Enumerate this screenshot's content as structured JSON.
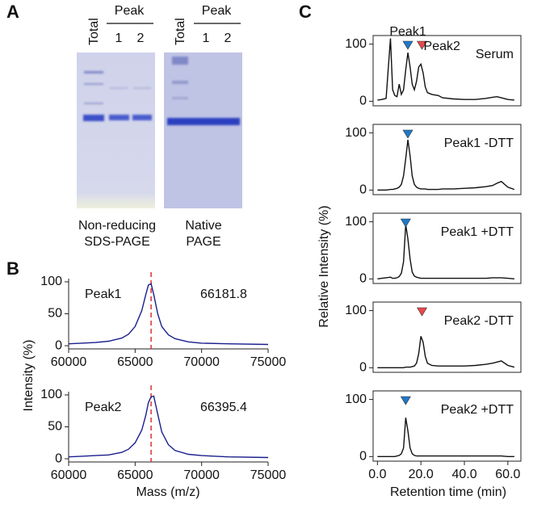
{
  "labels": {
    "a": "A",
    "b": "B",
    "c": "C"
  },
  "gels": [
    {
      "total": "Total",
      "peak": "Peak",
      "lane1": "1",
      "lane2": "2",
      "caption": [
        "Non-reducing",
        "SDS-PAGE"
      ]
    },
    {
      "total": "Total",
      "peak": "Peak",
      "lane1": "1",
      "lane2": "2",
      "caption": [
        "Native",
        "PAGE"
      ]
    }
  ],
  "axis_labels": {
    "b_y": "Intensity (%)",
    "b_x": "Mass (m/z)",
    "c_y": "Relative Intensity (%)",
    "c_x": "Retention time (min)"
  },
  "chart_data": [
    {
      "type": "line",
      "annotation": "66181.8",
      "ref_x": 66200,
      "x": [
        60000,
        61000,
        62000,
        63000,
        64000,
        64500,
        65000,
        65500,
        65800,
        66000,
        66200,
        66400,
        66700,
        67000,
        67500,
        68000,
        69000,
        70000,
        72000,
        75000
      ],
      "series": [
        {
          "name": "Peak1",
          "color": "#1a1f8c",
          "values": [
            3,
            4,
            5,
            7,
            12,
            18,
            30,
            55,
            80,
            95,
            97,
            80,
            50,
            30,
            17,
            11,
            6,
            4,
            3,
            2
          ]
        }
      ],
      "xlim": [
        60000,
        75000
      ],
      "xticks": [
        60000,
        65000,
        70000,
        75000
      ],
      "ylim": [
        -5,
        105
      ],
      "yticks": [
        0,
        50,
        100
      ]
    },
    {
      "type": "line",
      "annotation": "66395.4",
      "ref_x": 66200,
      "x": [
        60000,
        61000,
        62000,
        63000,
        64000,
        64500,
        65000,
        65500,
        65800,
        66000,
        66200,
        66400,
        66700,
        67000,
        67500,
        68000,
        69000,
        70000,
        72000,
        75000
      ],
      "series": [
        {
          "name": "Peak2",
          "color": "#1a1f8c",
          "values": [
            3,
            4,
            5,
            6,
            10,
            15,
            25,
            45,
            68,
            88,
            97,
            98,
            70,
            42,
            22,
            13,
            7,
            5,
            3,
            2
          ]
        }
      ],
      "xlim": [
        60000,
        75000
      ],
      "xticks": [
        60000,
        65000,
        70000,
        75000
      ],
      "ylim": [
        -5,
        105
      ],
      "yticks": [
        0,
        50,
        100
      ]
    },
    {
      "type": "line",
      "x": [
        0,
        2,
        4,
        6,
        7,
        8,
        9,
        10,
        11,
        12,
        13,
        14,
        15,
        16,
        17,
        18,
        19,
        20,
        21,
        22,
        23,
        25,
        28,
        30,
        35,
        40,
        45,
        50,
        53,
        55,
        57,
        60,
        63
      ],
      "series": [
        {
          "name": "Serum",
          "color": "#111111",
          "values": [
            2,
            3,
            5,
            110,
            20,
            10,
            8,
            30,
            12,
            20,
            55,
            85,
            60,
            30,
            20,
            35,
            60,
            65,
            50,
            25,
            15,
            12,
            10,
            6,
            4,
            3,
            3,
            5,
            7,
            8,
            6,
            3,
            2
          ]
        }
      ],
      "markers": [
        {
          "x": 14,
          "color": "#1f78c8",
          "label": "Peak1"
        },
        {
          "x": 20.5,
          "color": "#e8474c",
          "label": "Peak2"
        }
      ],
      "xlim": [
        -2,
        66
      ],
      "ylim": [
        -8,
        115
      ],
      "yticks": [
        0,
        100
      ]
    },
    {
      "type": "line",
      "x": [
        0,
        2,
        4,
        6,
        7,
        8,
        9,
        10,
        11,
        12,
        13,
        14,
        15,
        16,
        17,
        18,
        19,
        20,
        21,
        22,
        23,
        25,
        28,
        30,
        35,
        40,
        45,
        50,
        53,
        55,
        57,
        60,
        63
      ],
      "series": [
        {
          "name": "Peak1 -DTT",
          "color": "#111111",
          "values": [
            0,
            0,
            0,
            1,
            1,
            2,
            3,
            5,
            10,
            25,
            55,
            88,
            60,
            25,
            10,
            5,
            3,
            2,
            2,
            2,
            1,
            1,
            1,
            2,
            2,
            3,
            4,
            6,
            8,
            12,
            15,
            5,
            1
          ]
        }
      ],
      "markers": [
        {
          "x": 14,
          "color": "#1f78c8"
        }
      ],
      "xlim": [
        -2,
        66
      ],
      "ylim": [
        -8,
        115
      ],
      "yticks": [
        0,
        100
      ]
    },
    {
      "type": "line",
      "x": [
        0,
        2,
        4,
        6,
        7,
        8,
        9,
        10,
        11,
        12,
        13,
        14,
        15,
        16,
        17,
        18,
        19,
        20,
        21,
        22,
        23,
        25,
        28,
        30,
        35,
        40,
        45,
        50,
        53,
        55,
        57,
        60,
        63
      ],
      "series": [
        {
          "name": "Peak1 +DTT",
          "color": "#111111",
          "values": [
            0,
            1,
            2,
            3,
            1,
            1,
            2,
            4,
            10,
            30,
            95,
            70,
            35,
            12,
            5,
            3,
            2,
            1,
            1,
            1,
            1,
            1,
            1,
            1,
            1,
            1,
            1,
            1,
            2,
            2,
            2,
            1,
            0
          ]
        }
      ],
      "markers": [
        {
          "x": 13,
          "color": "#1f78c8"
        }
      ],
      "xlim": [
        -2,
        66
      ],
      "ylim": [
        -8,
        115
      ],
      "yticks": [
        0,
        100
      ]
    },
    {
      "type": "line",
      "x": [
        0,
        2,
        4,
        6,
        7,
        8,
        9,
        10,
        11,
        12,
        13,
        14,
        15,
        16,
        17,
        18,
        19,
        20,
        21,
        22,
        23,
        25,
        28,
        30,
        35,
        40,
        45,
        50,
        53,
        55,
        57,
        60,
        63
      ],
      "series": [
        {
          "name": "Peak2 -DTT",
          "color": "#111111",
          "values": [
            0,
            0,
            0,
            0,
            0,
            0,
            0,
            0,
            0,
            0,
            1,
            1,
            1,
            2,
            3,
            8,
            25,
            55,
            45,
            20,
            8,
            4,
            3,
            3,
            3,
            3,
            4,
            6,
            8,
            10,
            12,
            4,
            1
          ]
        }
      ],
      "markers": [
        {
          "x": 20.5,
          "color": "#e8474c"
        }
      ],
      "xlim": [
        -2,
        66
      ],
      "ylim": [
        -8,
        115
      ],
      "yticks": [
        0,
        100
      ]
    },
    {
      "type": "line",
      "x": [
        0,
        2,
        4,
        6,
        7,
        8,
        9,
        10,
        11,
        12,
        13,
        14,
        15,
        16,
        17,
        18,
        19,
        20,
        21,
        22,
        23,
        25,
        28,
        30,
        35,
        40,
        45,
        50,
        53,
        55,
        57,
        60,
        63
      ],
      "series": [
        {
          "name": "Peak2 +DTT",
          "color": "#111111",
          "values": [
            0,
            0,
            0,
            0,
            0,
            0,
            1,
            2,
            5,
            15,
            68,
            45,
            15,
            5,
            2,
            1,
            1,
            1,
            1,
            1,
            1,
            1,
            1,
            1,
            1,
            1,
            1,
            1,
            1,
            1,
            1,
            0,
            0
          ]
        }
      ],
      "markers": [
        {
          "x": 13,
          "color": "#1f78c8"
        }
      ],
      "xlim": [
        -2,
        66
      ],
      "ylim": [
        -8,
        115
      ],
      "yticks": [
        0,
        100
      ],
      "xticks": [
        {
          "value": 0,
          "label": "0.0"
        },
        {
          "value": 20,
          "label": "20.0"
        },
        {
          "value": 40,
          "label": "40.0"
        },
        {
          "value": 60,
          "label": "60.0"
        }
      ]
    }
  ]
}
